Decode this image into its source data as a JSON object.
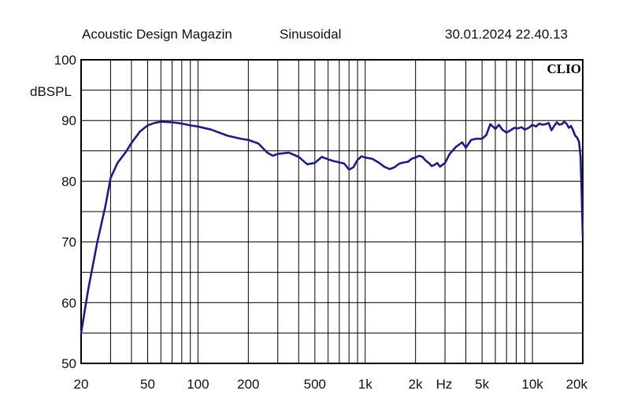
{
  "header": {
    "source": "Acoustic Design Magazin",
    "mode": "Sinusoidal",
    "timestamp": "30.01.2024 22.40.13"
  },
  "brand": "CLIO",
  "colors": {
    "curve": "#1c1c8c",
    "grid": "#000000",
    "background": "#ffffff"
  },
  "chart_data": {
    "type": "line",
    "xscale": "log",
    "xlim": [
      20,
      20000
    ],
    "ylim": [
      50,
      100
    ],
    "ylabel": "dBSPL",
    "xunit_label": "Hz",
    "grid": true,
    "x_ticks": [
      {
        "v": 20,
        "label": "20"
      },
      {
        "v": 50,
        "label": "50"
      },
      {
        "v": 100,
        "label": "100"
      },
      {
        "v": 200,
        "label": "200"
      },
      {
        "v": 500,
        "label": "500"
      },
      {
        "v": 1000,
        "label": "1k"
      },
      {
        "v": 2000,
        "label": "2k"
      },
      {
        "v": 5000,
        "label": "5k"
      },
      {
        "v": 10000,
        "label": "10k"
      },
      {
        "v": 20000,
        "label": "20k"
      }
    ],
    "y_ticks": [
      {
        "v": 100,
        "label": "100"
      },
      {
        "v": 90,
        "label": "90"
      },
      {
        "v": 80,
        "label": "80"
      },
      {
        "v": 70,
        "label": "70"
      },
      {
        "v": 60,
        "label": "60"
      },
      {
        "v": 50,
        "label": "50"
      }
    ],
    "series": [
      {
        "x": [
          20,
          22,
          25,
          28,
          30,
          33,
          37,
          40,
          45,
          50,
          55,
          60,
          70,
          80,
          90,
          100,
          120,
          150,
          180,
          200,
          230,
          260,
          280,
          300,
          350,
          400,
          450,
          500,
          550,
          600,
          650,
          700,
          750,
          800,
          850,
          900,
          950,
          1000,
          1100,
          1200,
          1300,
          1400,
          1500,
          1600,
          1700,
          1800,
          1900,
          2000,
          2100,
          2200,
          2300,
          2400,
          2500,
          2600,
          2700,
          2800,
          3000,
          3200,
          3500,
          3800,
          4000,
          4300,
          4600,
          5000,
          5300,
          5600,
          6000,
          6300,
          6600,
          7000,
          7400,
          7800,
          8200,
          8600,
          9000,
          9500,
          10000,
          10500,
          11000,
          11500,
          12000,
          12500,
          13000,
          13500,
          14000,
          14500,
          15000,
          15500,
          16000,
          16500,
          17000,
          17500,
          18000,
          18500,
          19000,
          19400,
          19700,
          20000
        ],
        "y": [
          55,
          62,
          70,
          76,
          80.5,
          83,
          84.8,
          86.3,
          88.2,
          89.2,
          89.6,
          89.8,
          89.7,
          89.5,
          89.2,
          89.0,
          88.5,
          87.5,
          87.0,
          86.8,
          86.2,
          84.7,
          84.2,
          84.5,
          84.7,
          84.0,
          82.8,
          83.0,
          84.0,
          83.6,
          83.3,
          83.1,
          82.9,
          81.9,
          82.3,
          83.5,
          84.1,
          83.9,
          83.7,
          83.1,
          82.4,
          82.0,
          82.3,
          82.9,
          83.1,
          83.2,
          83.7,
          83.9,
          84.2,
          84.0,
          83.4,
          83.0,
          82.5,
          82.7,
          83.0,
          82.4,
          83.0,
          84.5,
          85.7,
          86.4,
          85.5,
          86.8,
          87.0,
          87.0,
          87.6,
          89.4,
          88.6,
          89.3,
          88.5,
          88.0,
          88.4,
          88.8,
          88.7,
          88.9,
          88.5,
          88.8,
          89.3,
          89.0,
          89.5,
          89.3,
          89.4,
          89.6,
          88.4,
          89.1,
          89.7,
          89.3,
          89.4,
          89.8,
          89.5,
          88.8,
          89.1,
          88.4,
          87.5,
          87.2,
          86.5,
          84.0,
          78.0,
          71.0
        ]
      }
    ]
  }
}
